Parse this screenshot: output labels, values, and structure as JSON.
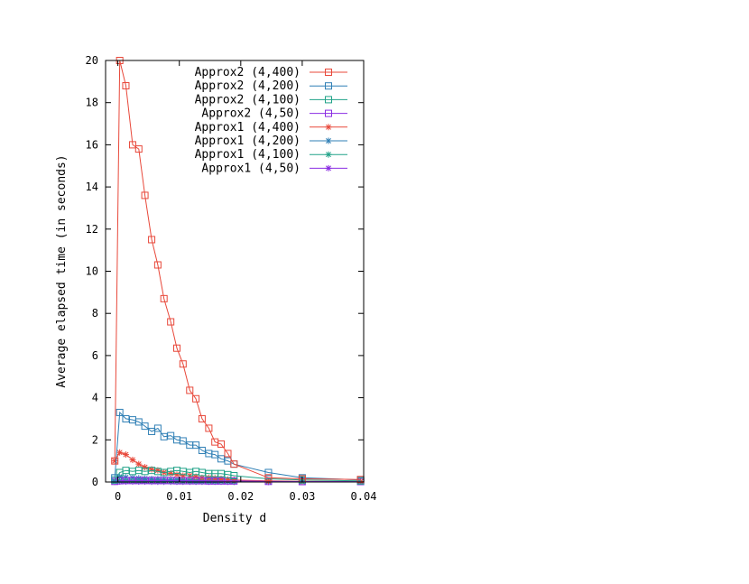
{
  "chart_data": {
    "type": "line",
    "title": "",
    "xlabel": "Density d",
    "ylabel": "Average elapsed time (in seconds)",
    "xlim": [
      -0.002,
      0.04
    ],
    "ylim": [
      0,
      20
    ],
    "xticks": [
      {
        "value": 0,
        "label": "0"
      },
      {
        "value": 0.01,
        "label": "0.01"
      },
      {
        "value": 0.02,
        "label": "0.02"
      },
      {
        "value": 0.03,
        "label": "0.03"
      },
      {
        "value": 0.04,
        "label": "0.04"
      }
    ],
    "yticks": [
      {
        "value": 0,
        "label": "0"
      },
      {
        "value": 2,
        "label": "2"
      },
      {
        "value": 4,
        "label": "4"
      },
      {
        "value": 6,
        "label": "6"
      },
      {
        "value": 8,
        "label": "8"
      },
      {
        "value": 10,
        "label": "10"
      },
      {
        "value": 12,
        "label": "12"
      },
      {
        "value": 14,
        "label": "14"
      },
      {
        "value": 16,
        "label": "16"
      },
      {
        "value": 18,
        "label": "18"
      },
      {
        "value": 20,
        "label": "20"
      }
    ],
    "grid": false,
    "legend_position": "top-right",
    "series": [
      {
        "name": "Approx2 (4,400)",
        "color": "#e8483a",
        "marker": "square",
        "x": [
          -0.0005,
          0.0003,
          0.0013,
          0.0024,
          0.0034,
          0.0044,
          0.0055,
          0.0065,
          0.0075,
          0.0086,
          0.0096,
          0.0106,
          0.0117,
          0.0127,
          0.0137,
          0.0148,
          0.0158,
          0.0168,
          0.0179,
          0.0189,
          0.0245,
          0.03,
          0.0395
        ],
        "y": [
          1.0,
          20.0,
          18.8,
          16.0,
          15.8,
          13.6,
          11.5,
          10.3,
          8.7,
          7.6,
          6.35,
          5.6,
          4.35,
          3.95,
          3.0,
          2.55,
          1.9,
          1.8,
          1.35,
          0.85,
          0.2,
          0.15,
          0.12
        ]
      },
      {
        "name": "Approx2 (4,200)",
        "color": "#2f7fb5",
        "marker": "square",
        "x": [
          -0.0005,
          0.0003,
          0.0013,
          0.0024,
          0.0034,
          0.0044,
          0.0055,
          0.0065,
          0.0075,
          0.0086,
          0.0096,
          0.0106,
          0.0117,
          0.0127,
          0.0137,
          0.0148,
          0.0158,
          0.0168,
          0.0179,
          0.0189,
          0.0245,
          0.03,
          0.0395
        ],
        "y": [
          0.2,
          3.3,
          3.0,
          2.95,
          2.85,
          2.65,
          2.4,
          2.55,
          2.15,
          2.2,
          2.0,
          1.95,
          1.75,
          1.75,
          1.5,
          1.35,
          1.3,
          1.1,
          1.0,
          0.85,
          0.45,
          0.2,
          0.1
        ]
      },
      {
        "name": "Approx2 (4,100)",
        "color": "#20a288",
        "marker": "square",
        "x": [
          -0.0005,
          0.0003,
          0.0013,
          0.0024,
          0.0034,
          0.0044,
          0.0055,
          0.0065,
          0.0075,
          0.0086,
          0.0096,
          0.0106,
          0.0117,
          0.0127,
          0.0137,
          0.0148,
          0.0158,
          0.0168,
          0.0179,
          0.0189,
          0.0245,
          0.03,
          0.0395
        ],
        "y": [
          0.1,
          0.45,
          0.55,
          0.5,
          0.55,
          0.5,
          0.55,
          0.5,
          0.45,
          0.5,
          0.55,
          0.5,
          0.45,
          0.5,
          0.45,
          0.4,
          0.4,
          0.4,
          0.35,
          0.3,
          0.15,
          0.1,
          0.05
        ]
      },
      {
        "name": "Approx2 (4,50)",
        "color": "#8a2be2",
        "marker": "square",
        "x": [
          -0.0005,
          0.0003,
          0.0013,
          0.0024,
          0.0034,
          0.0044,
          0.0055,
          0.0065,
          0.0075,
          0.0086,
          0.0096,
          0.0106,
          0.0117,
          0.0127,
          0.0137,
          0.0148,
          0.0158,
          0.0168,
          0.0179,
          0.0189,
          0.0245,
          0.03,
          0.0395
        ],
        "y": [
          0.03,
          0.06,
          0.07,
          0.07,
          0.07,
          0.07,
          0.07,
          0.07,
          0.07,
          0.07,
          0.06,
          0.06,
          0.06,
          0.06,
          0.06,
          0.05,
          0.05,
          0.05,
          0.05,
          0.05,
          0.03,
          0.02,
          0.02
        ]
      },
      {
        "name": "Approx1 (4,400)",
        "color": "#e8483a",
        "marker": "star",
        "x": [
          -0.0005,
          0.0003,
          0.0013,
          0.0024,
          0.0034,
          0.0044,
          0.0055,
          0.0065,
          0.0075,
          0.0086,
          0.0096,
          0.0106,
          0.0117,
          0.0127,
          0.0137,
          0.0148,
          0.0158,
          0.0168,
          0.0179,
          0.0189,
          0.0245,
          0.03,
          0.0395
        ],
        "y": [
          1.0,
          1.4,
          1.3,
          1.05,
          0.85,
          0.7,
          0.6,
          0.55,
          0.45,
          0.4,
          0.35,
          0.3,
          0.3,
          0.25,
          0.2,
          0.2,
          0.18,
          0.15,
          0.12,
          0.1,
          0.05,
          0.03,
          0.02
        ]
      },
      {
        "name": "Approx1 (4,200)",
        "color": "#2f7fb5",
        "marker": "star",
        "x": [
          -0.0005,
          0.0003,
          0.0013,
          0.0024,
          0.0034,
          0.0044,
          0.0055,
          0.0065,
          0.0075,
          0.0086,
          0.0096,
          0.0106,
          0.0117,
          0.0127,
          0.0137,
          0.0148,
          0.0158,
          0.0168,
          0.0179,
          0.0189,
          0.0245,
          0.03,
          0.0395
        ],
        "y": [
          0.05,
          0.25,
          0.22,
          0.2,
          0.18,
          0.16,
          0.15,
          0.14,
          0.12,
          0.11,
          0.1,
          0.09,
          0.08,
          0.07,
          0.06,
          0.06,
          0.05,
          0.05,
          0.04,
          0.04,
          0.02,
          0.01,
          0.01
        ]
      },
      {
        "name": "Approx1 (4,100)",
        "color": "#20a288",
        "marker": "star",
        "x": [
          -0.0005,
          0.0003,
          0.0013,
          0.0024,
          0.0034,
          0.0044,
          0.0055,
          0.0065,
          0.0075,
          0.0086,
          0.0096,
          0.0106,
          0.0117,
          0.0127,
          0.0137,
          0.0148,
          0.0158,
          0.0168,
          0.0179,
          0.0189,
          0.0245,
          0.03,
          0.0395
        ],
        "y": [
          0.02,
          0.06,
          0.06,
          0.05,
          0.05,
          0.05,
          0.04,
          0.04,
          0.04,
          0.03,
          0.03,
          0.03,
          0.03,
          0.02,
          0.02,
          0.02,
          0.02,
          0.02,
          0.02,
          0.01,
          0.01,
          0.01,
          0.01
        ]
      },
      {
        "name": "Approx1 (4,50)",
        "color": "#8a2be2",
        "marker": "star",
        "x": [
          -0.0005,
          0.0003,
          0.0013,
          0.0024,
          0.0034,
          0.0044,
          0.0055,
          0.0065,
          0.0075,
          0.0086,
          0.0096,
          0.0106,
          0.0117,
          0.0127,
          0.0137,
          0.0148,
          0.0158,
          0.0168,
          0.0179,
          0.0189,
          0.0245,
          0.03,
          0.0395
        ],
        "y": [
          0.01,
          0.02,
          0.02,
          0.02,
          0.02,
          0.02,
          0.01,
          0.01,
          0.01,
          0.01,
          0.01,
          0.01,
          0.01,
          0.01,
          0.01,
          0.01,
          0.01,
          0.01,
          0.01,
          0.01,
          0.0,
          0.0,
          0.0
        ]
      }
    ]
  }
}
